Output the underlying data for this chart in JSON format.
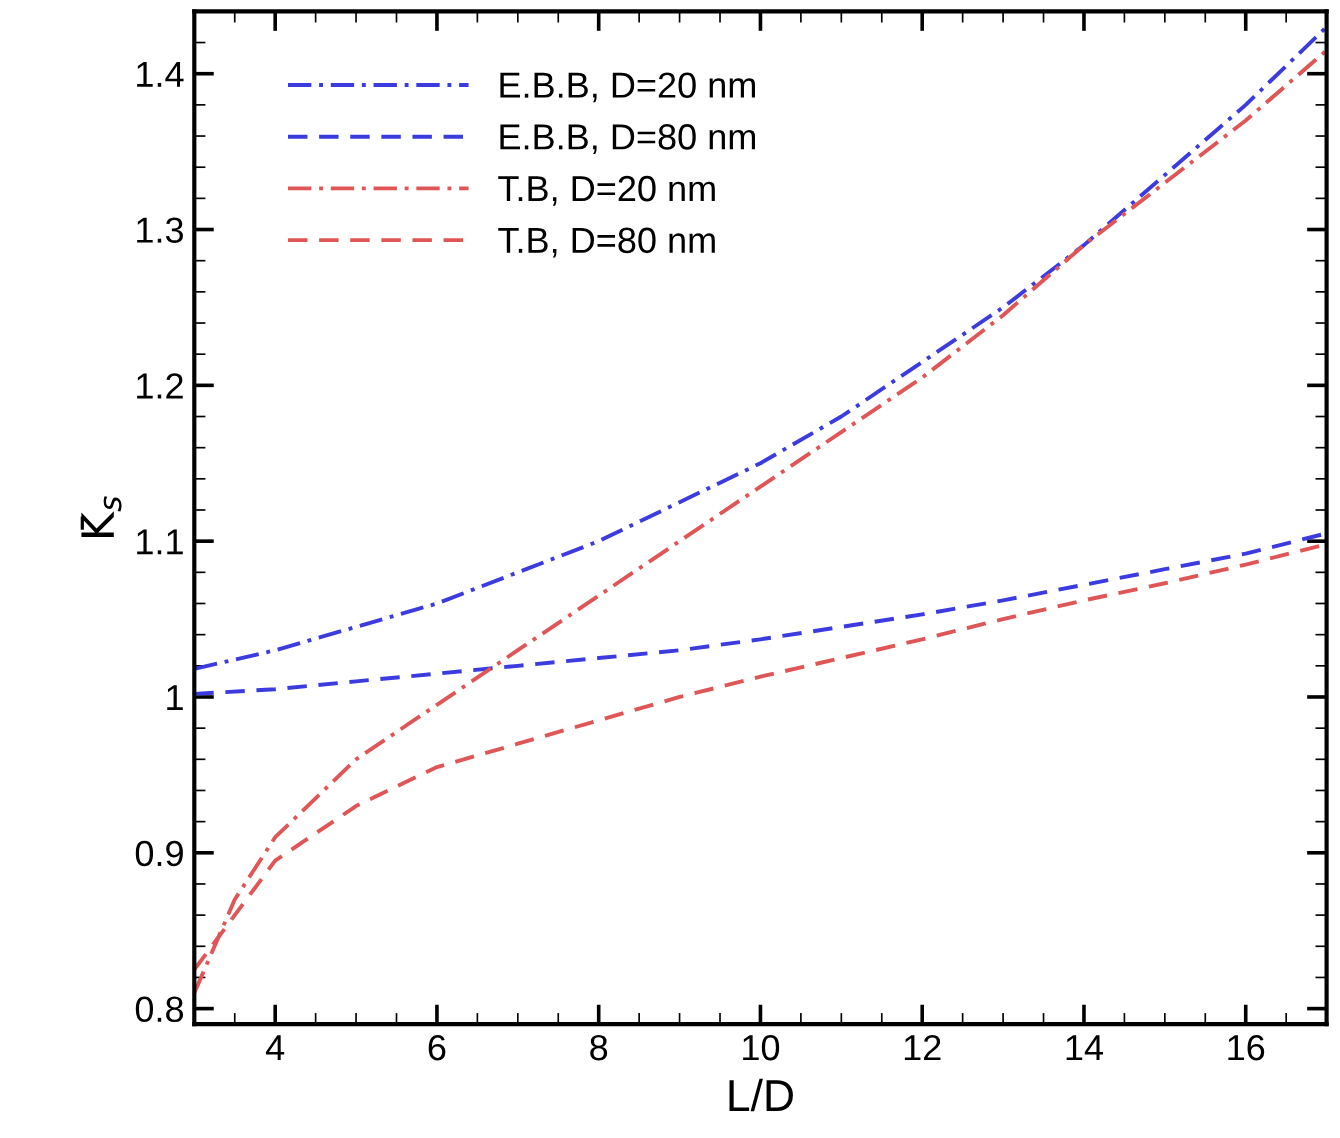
{
  "chart_data": {
    "type": "line",
    "xlabel": "L/D",
    "ylabel": "K̄$_{s}$",
    "xlim": [
      3,
      17
    ],
    "ylim": [
      0.79,
      1.44
    ],
    "xticks": [
      4,
      6,
      8,
      10,
      12,
      14,
      16
    ],
    "yticks": [
      0.8,
      0.9,
      1,
      1.1,
      1.2,
      1.3,
      1.4
    ],
    "grid": false,
    "legend": "top left",
    "marker": "none",
    "series": [
      {
        "name": "E.B.B, D=20 nm",
        "color": "#3b3be0",
        "line_style": "dashdot",
        "x": [
          3,
          4,
          5,
          6,
          7,
          8,
          9,
          10,
          11,
          12,
          13,
          14,
          15,
          16,
          17
        ],
        "values": [
          1.018,
          1.03,
          1.045,
          1.06,
          1.08,
          1.1,
          1.125,
          1.15,
          1.18,
          1.215,
          1.25,
          1.29,
          1.335,
          1.38,
          1.43
        ]
      },
      {
        "name": "E.B.B, D=80 nm",
        "color": "#3b3be0",
        "line_style": "dashed",
        "x": [
          3,
          4,
          5,
          6,
          7,
          8,
          9,
          10,
          11,
          12,
          13,
          14,
          15,
          16,
          17
        ],
        "values": [
          1.002,
          1.005,
          1.01,
          1.015,
          1.02,
          1.025,
          1.03,
          1.037,
          1.045,
          1.053,
          1.062,
          1.072,
          1.082,
          1.092,
          1.105
        ]
      },
      {
        "name": "T.B, D=20 nm",
        "color": "#e05555",
        "line_style": "dashdot",
        "x": [
          3,
          3.5,
          4,
          5,
          6,
          7,
          8,
          9,
          10,
          11,
          12,
          13,
          14,
          15,
          16,
          17
        ],
        "values": [
          0.81,
          0.87,
          0.91,
          0.96,
          0.995,
          1.03,
          1.065,
          1.1,
          1.135,
          1.17,
          1.205,
          1.245,
          1.29,
          1.33,
          1.37,
          1.415
        ]
      },
      {
        "name": "T.B, D=80 nm",
        "color": "#e05555",
        "line_style": "dashed",
        "x": [
          3,
          3.5,
          4,
          5,
          6,
          7,
          8,
          9,
          10,
          11,
          12,
          13,
          14,
          15,
          16,
          17
        ],
        "values": [
          0.825,
          0.86,
          0.895,
          0.93,
          0.955,
          0.97,
          0.985,
          1.0,
          1.013,
          1.025,
          1.037,
          1.05,
          1.062,
          1.073,
          1.085,
          1.098
        ]
      }
    ]
  }
}
